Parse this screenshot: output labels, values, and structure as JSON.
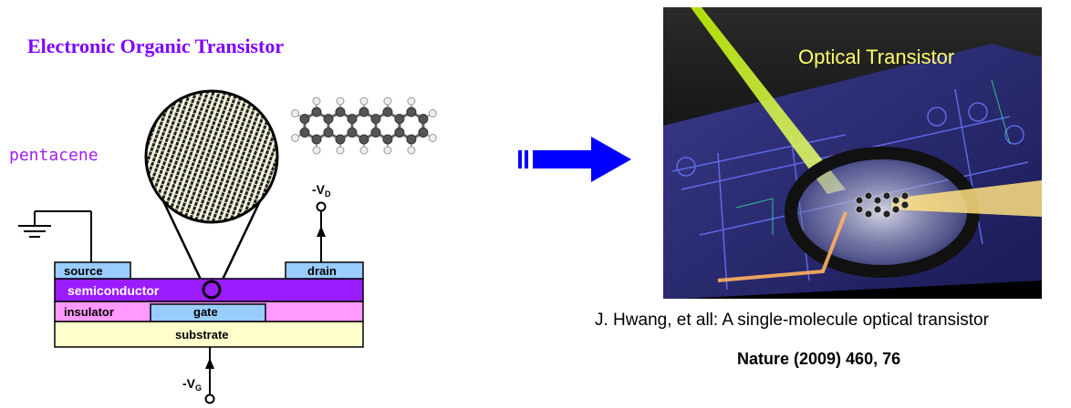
{
  "left": {
    "title": "Electronic Organic Transistor",
    "molecule_label": "pentacene",
    "layers": {
      "source": "source",
      "drain": "drain",
      "semiconductor": "semiconductor",
      "insulator": "insulator",
      "gate": "gate",
      "substrate": "substrate"
    },
    "vd": "-V",
    "vd_sub": "D",
    "vg": "-V",
    "vg_sub": "G"
  },
  "right": {
    "image_label": "Optical Transistor",
    "reference_line1": "J. Hwang, et all: A single-molecule optical transistor",
    "reference_line2": "Nature (2009) 460, 76"
  },
  "colors": {
    "title": "#7f00ff",
    "semiconductor": "#9b1cff",
    "insulator": "#ff99ff",
    "substrate": "#ffffcc",
    "electrode": "#99ccff",
    "arrow": "#0000ff"
  }
}
